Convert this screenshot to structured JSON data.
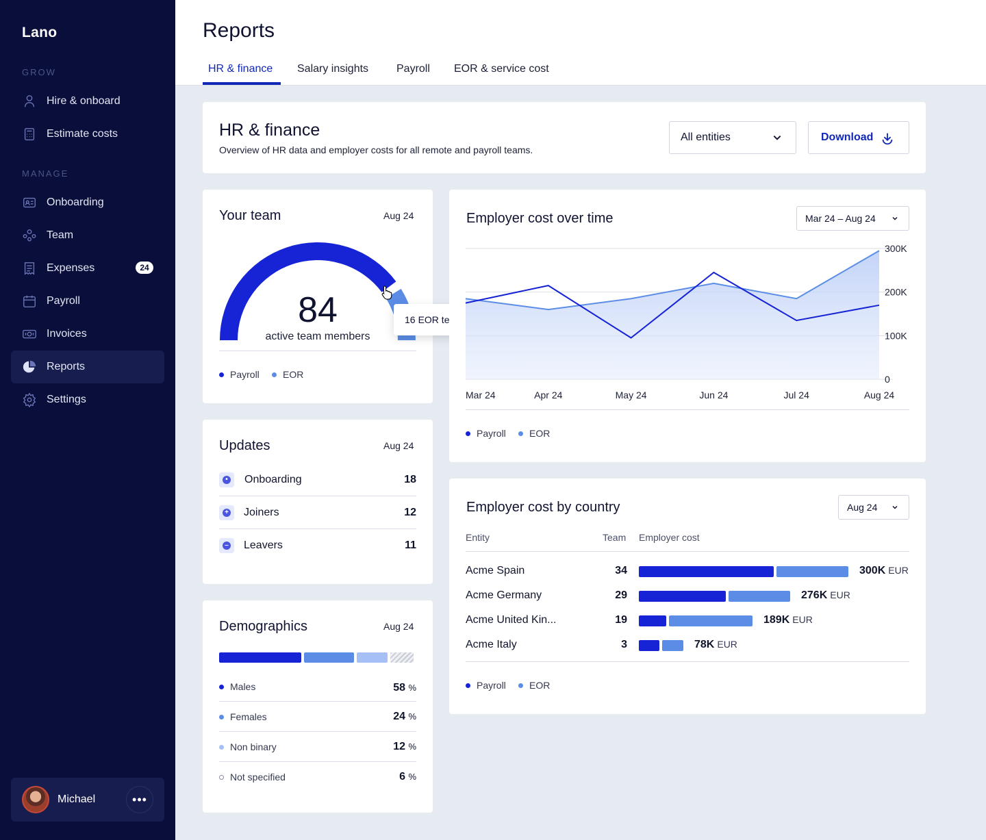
{
  "app": {
    "logo": "Lano"
  },
  "sidebar": {
    "grow_label": "GROW",
    "manage_label": "MANAGE",
    "grow_items": [
      {
        "label": "Hire & onboard",
        "icon": "person-icon"
      },
      {
        "label": "Estimate costs",
        "icon": "calculator-icon"
      }
    ],
    "manage_items": [
      {
        "label": "Onboarding",
        "icon": "id-card-icon"
      },
      {
        "label": "Team",
        "icon": "team-icon"
      },
      {
        "label": "Expenses",
        "icon": "receipt-icon",
        "badge": "24"
      },
      {
        "label": "Payroll",
        "icon": "calendar-icon"
      },
      {
        "label": "Invoices",
        "icon": "banknote-icon"
      },
      {
        "label": "Reports",
        "icon": "pie-chart-icon",
        "active": true
      },
      {
        "label": "Settings",
        "icon": "gear-icon"
      }
    ],
    "user": {
      "name": "Michael",
      "more": "•••"
    }
  },
  "header": {
    "title": "Reports",
    "tabs": [
      "HR & finance",
      "Salary insights",
      "Payroll",
      "EOR & service cost"
    ],
    "active_tab": "HR & finance"
  },
  "intro": {
    "title": "HR & finance",
    "subtitle": "Overview of HR data and employer costs for all remote and payroll teams.",
    "entities_select": "All entities",
    "download_label": "Download"
  },
  "team": {
    "title": "Your team",
    "date": "Aug 24",
    "total": "84",
    "total_label": "active team members",
    "payroll_count": 68,
    "eor_count": 16,
    "tooltip_count": "16",
    "tooltip_label": "EOR team members",
    "legend": [
      "Payroll",
      "EOR"
    ]
  },
  "updates": {
    "title": "Updates",
    "date": "Aug 24",
    "items": [
      {
        "label": "Onboarding",
        "value": "18",
        "icon": "stopwatch-icon"
      },
      {
        "label": "Joiners",
        "value": "12",
        "icon": "plus-circle-icon"
      },
      {
        "label": "Leavers",
        "value": "11",
        "icon": "minus-circle-icon"
      }
    ]
  },
  "demographics": {
    "title": "Demographics",
    "date": "Aug 24",
    "items": [
      {
        "label": "Males",
        "value": "58",
        "unit": "%"
      },
      {
        "label": "Females",
        "value": "24",
        "unit": "%"
      },
      {
        "label": "Non binary",
        "value": "12",
        "unit": "%"
      },
      {
        "label": "Not specified",
        "value": "6",
        "unit": "%"
      }
    ]
  },
  "cost_over_time": {
    "title": "Employer cost over time",
    "range_select": "Mar 24 – Aug 24",
    "legend": [
      "Payroll",
      "EOR"
    ]
  },
  "cost_by_country": {
    "title": "Employer cost by country",
    "select": "Aug 24",
    "headers": {
      "entity": "Entity",
      "team": "Team",
      "cost": "Employer cost"
    },
    "rows": [
      {
        "entity": "Acme Spain",
        "team": "34",
        "cost": "300K",
        "currency": "EUR",
        "payroll": 197,
        "eor": 105
      },
      {
        "entity": "Acme Germany",
        "team": "29",
        "cost": "276K",
        "currency": "EUR",
        "payroll": 127,
        "eor": 90
      },
      {
        "entity": "Acme United Kin...",
        "team": "19",
        "cost": "189K",
        "currency": "EUR",
        "payroll": 40,
        "eor": 122
      },
      {
        "entity": "Acme Italy",
        "team": "3",
        "cost": "78K",
        "currency": "EUR",
        "payroll": 30,
        "eor": 31
      }
    ],
    "legend": [
      "Payroll",
      "EOR"
    ]
  },
  "chart_data": {
    "type": "line",
    "x": [
      "Mar 24",
      "Apr 24",
      "May 24",
      "Jun 24",
      "Jul 24",
      "Aug 24"
    ],
    "ylim": [
      0,
      300000
    ],
    "yticks": [
      "300K",
      "200K",
      "100K",
      "0"
    ],
    "series": [
      {
        "name": "Payroll",
        "values": [
          175000,
          215000,
          95000,
          245000,
          135000,
          170000
        ]
      },
      {
        "name": "EOR",
        "values": [
          185000,
          160000,
          185000,
          220000,
          185000,
          295000
        ]
      }
    ]
  }
}
